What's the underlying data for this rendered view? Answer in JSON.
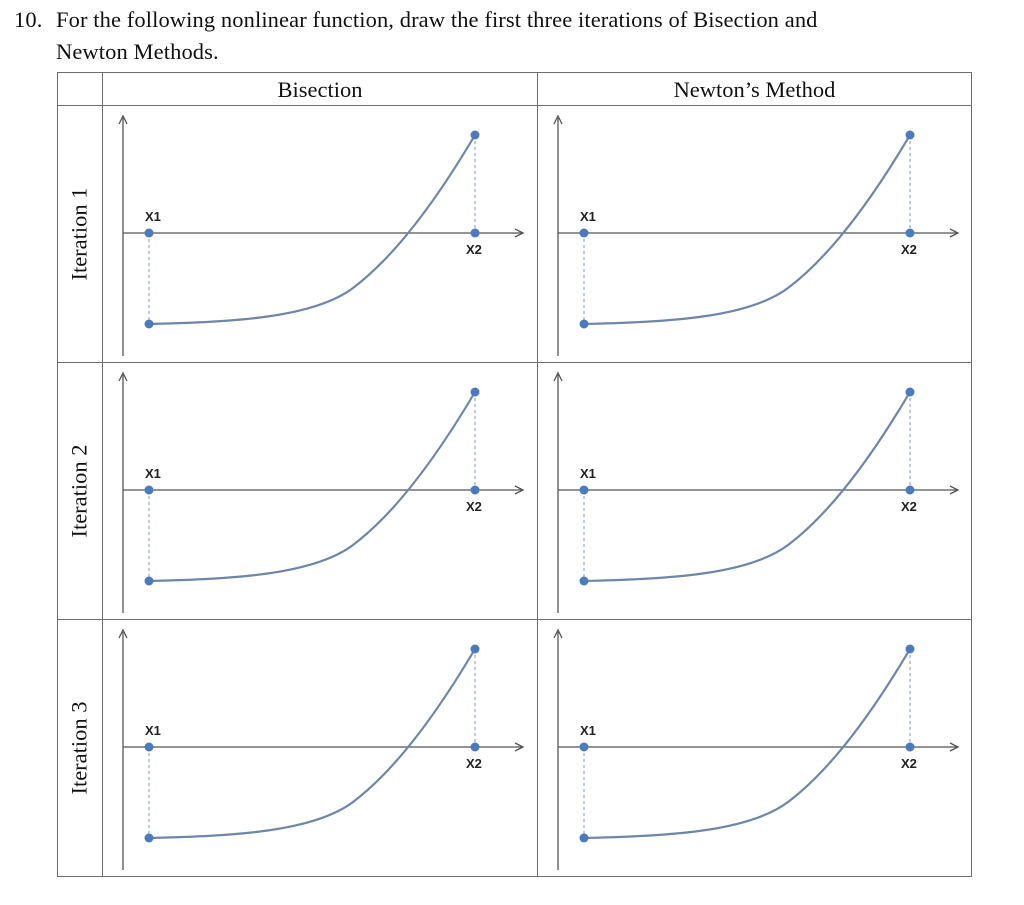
{
  "question": {
    "number": "10.",
    "line1": "For the following nonlinear function, draw the first three iterations of Bisection and",
    "line2": "Newton Methods."
  },
  "table": {
    "columns": [
      "Bisection",
      "Newton’s Method"
    ],
    "rows": [
      "Iteration 1",
      "Iteration 2",
      "Iteration 3"
    ]
  },
  "figure": {
    "point_labels": {
      "left": "X1",
      "right": "X2"
    },
    "colors": {
      "curve": "#6f86a8",
      "points": "#4a7bbf",
      "axes": "#555555",
      "dashed_guides": "#8fa8cf"
    }
  }
}
